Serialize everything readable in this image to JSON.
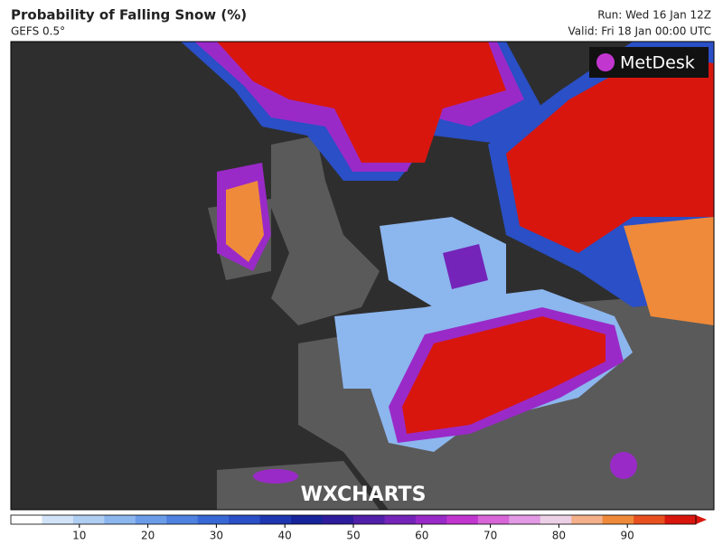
{
  "header": {
    "title": "Probability of Falling Snow (%)",
    "subtitle": "GEFS 0.5°",
    "run": "Run: Wed 16 Jan 12Z",
    "valid": "Valid: Fri 18 Jan 00:00 UTC"
  },
  "logo": "MetDesk",
  "watermark": "WXCHARTS",
  "colorbar": {
    "range": [
      0,
      100
    ],
    "ticks": [
      10,
      20,
      30,
      40,
      50,
      60,
      70,
      80,
      90
    ],
    "colors": [
      "#ffffff",
      "#d2e3f7",
      "#b0cdf2",
      "#8cb6ee",
      "#6a9ce8",
      "#4f82e0",
      "#3868d6",
      "#2a4fc6",
      "#1e36b0",
      "#16239a",
      "#2e1c9c",
      "#5020a8",
      "#7424b8",
      "#9a2ac8",
      "#c236d0",
      "#d866d8",
      "#e29ae4",
      "#ecd0e6",
      "#f3b08a",
      "#ef8a3a",
      "#e85020",
      "#d8160e"
    ]
  }
}
